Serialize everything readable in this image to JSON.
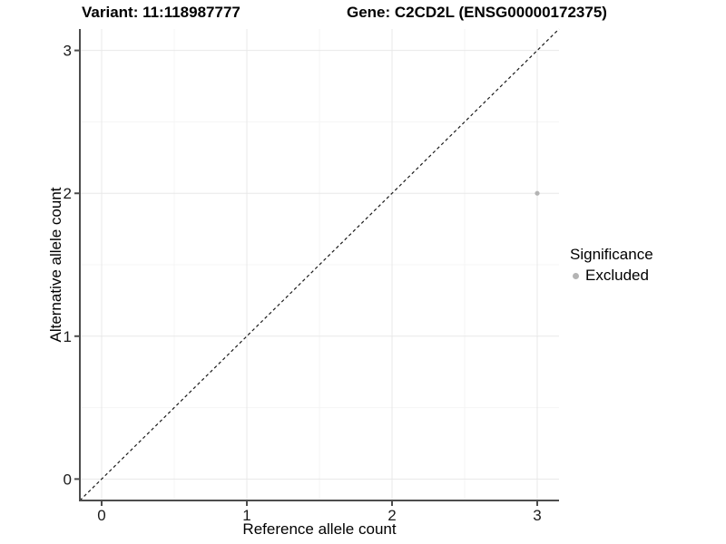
{
  "chart_data": {
    "type": "scatter",
    "title_left": "Variant: 11:118987777",
    "title_right": "Gene: C2CD2L (ENSG00000172375)",
    "xlabel": "Reference allele count",
    "ylabel": "Alternative allele count",
    "xlim": [
      -0.15,
      3.15
    ],
    "ylim": [
      -0.15,
      3.15
    ],
    "xticks": [
      0,
      1,
      2,
      3
    ],
    "yticks": [
      0,
      1,
      2,
      3
    ],
    "xtick_labels": [
      "0",
      "1",
      "2",
      "3"
    ],
    "ytick_labels": [
      "0",
      "1",
      "2",
      "3"
    ],
    "minor_ticks": [
      0.5,
      1.5,
      2.5
    ],
    "grid": "major and minor, light gray on white",
    "points": [
      {
        "x": 3,
        "y": 2,
        "series": "Excluded"
      }
    ],
    "reference_line": {
      "type": "identity y=x",
      "style": "dashed",
      "color": "#1a1a1a"
    },
    "legend": {
      "title": "Significance",
      "position": "right",
      "entries": [
        {
          "label": "Excluded",
          "color": "#b4b4b4"
        }
      ]
    },
    "colors": {
      "point": "#b4b4b4",
      "grid_major": "#e8e8e8",
      "grid_minor": "#f4f4f4",
      "axis": "#4d4d4d",
      "tick_label": "#1a1a1a",
      "background": "#ffffff"
    }
  }
}
